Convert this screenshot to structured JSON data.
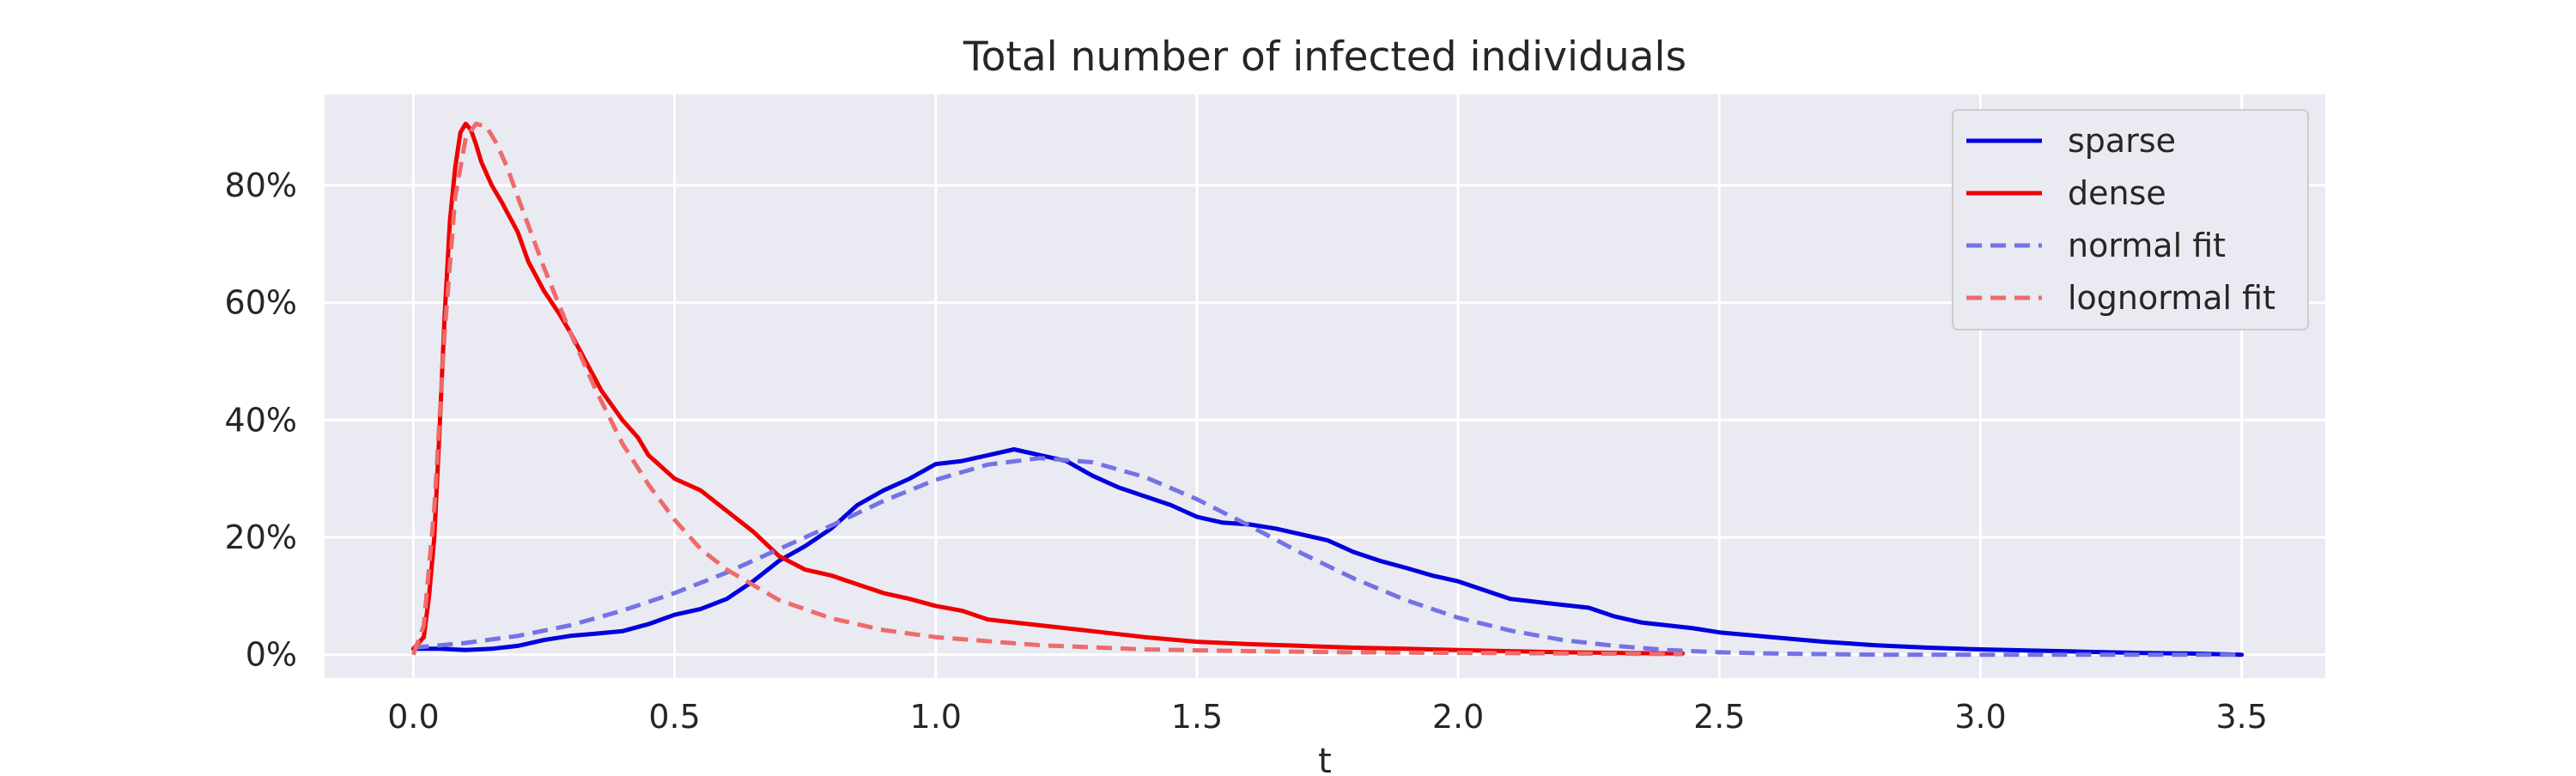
{
  "chart_data": {
    "type": "line",
    "title": "Total number of infected individuals",
    "xlabel": "t",
    "ylabel": "",
    "xlim": [
      -0.17,
      3.66
    ],
    "ylim": [
      -0.04,
      0.955
    ],
    "xticks": [
      0.0,
      0.5,
      1.0,
      1.5,
      2.0,
      2.5,
      3.0,
      3.5
    ],
    "xtick_labels": [
      "0.0",
      "0.5",
      "1.0",
      "1.5",
      "2.0",
      "2.5",
      "3.0",
      "3.5"
    ],
    "yticks": [
      0.0,
      0.2,
      0.4,
      0.6,
      0.8
    ],
    "ytick_labels": [
      "0%",
      "20%",
      "40%",
      "60%",
      "80%"
    ],
    "grid": true,
    "legend_position": "top-right",
    "series": [
      {
        "name": "sparse",
        "color": "#0000dd",
        "style": "solid",
        "x": [
          0.0,
          0.05,
          0.1,
          0.15,
          0.2,
          0.25,
          0.3,
          0.35,
          0.4,
          0.45,
          0.5,
          0.55,
          0.6,
          0.65,
          0.7,
          0.75,
          0.8,
          0.85,
          0.9,
          0.95,
          1.0,
          1.05,
          1.1,
          1.15,
          1.2,
          1.25,
          1.3,
          1.35,
          1.4,
          1.45,
          1.5,
          1.55,
          1.6,
          1.65,
          1.7,
          1.75,
          1.8,
          1.85,
          1.9,
          1.95,
          2.0,
          2.05,
          2.1,
          2.15,
          2.2,
          2.25,
          2.3,
          2.35,
          2.4,
          2.45,
          2.5,
          2.6,
          2.7,
          2.8,
          2.9,
          3.0,
          3.1,
          3.2,
          3.3,
          3.4,
          3.5
        ],
        "y": [
          0.01,
          0.01,
          0.008,
          0.01,
          0.015,
          0.025,
          0.032,
          0.036,
          0.04,
          0.052,
          0.068,
          0.078,
          0.095,
          0.125,
          0.16,
          0.185,
          0.215,
          0.255,
          0.28,
          0.3,
          0.325,
          0.33,
          0.34,
          0.35,
          0.34,
          0.33,
          0.305,
          0.285,
          0.27,
          0.255,
          0.235,
          0.225,
          0.222,
          0.215,
          0.205,
          0.195,
          0.175,
          0.16,
          0.148,
          0.135,
          0.125,
          0.11,
          0.095,
          0.09,
          0.085,
          0.08,
          0.065,
          0.055,
          0.05,
          0.045,
          0.038,
          0.03,
          0.022,
          0.016,
          0.012,
          0.009,
          0.007,
          0.005,
          0.003,
          0.002,
          0.0
        ]
      },
      {
        "name": "dense",
        "color": "#ee0000",
        "style": "solid",
        "x": [
          0.0,
          0.02,
          0.03,
          0.04,
          0.05,
          0.06,
          0.07,
          0.08,
          0.09,
          0.1,
          0.11,
          0.12,
          0.13,
          0.15,
          0.17,
          0.2,
          0.22,
          0.25,
          0.28,
          0.3,
          0.33,
          0.36,
          0.4,
          0.43,
          0.45,
          0.5,
          0.55,
          0.6,
          0.65,
          0.7,
          0.75,
          0.8,
          0.85,
          0.9,
          0.95,
          1.0,
          1.05,
          1.1,
          1.2,
          1.3,
          1.4,
          1.5,
          1.6,
          1.7,
          1.8,
          1.9,
          2.0,
          2.1,
          2.2,
          2.3,
          2.43
        ],
        "y": [
          0.01,
          0.03,
          0.1,
          0.2,
          0.38,
          0.58,
          0.74,
          0.83,
          0.89,
          0.905,
          0.895,
          0.87,
          0.84,
          0.8,
          0.77,
          0.72,
          0.67,
          0.62,
          0.58,
          0.55,
          0.5,
          0.45,
          0.4,
          0.37,
          0.34,
          0.3,
          0.28,
          0.245,
          0.21,
          0.168,
          0.145,
          0.135,
          0.12,
          0.105,
          0.095,
          0.083,
          0.075,
          0.06,
          0.05,
          0.04,
          0.03,
          0.022,
          0.018,
          0.015,
          0.012,
          0.01,
          0.008,
          0.006,
          0.004,
          0.003,
          0.002
        ]
      },
      {
        "name": "normal fit",
        "color": "#7373e6",
        "style": "dashed",
        "x": [
          0.0,
          0.1,
          0.2,
          0.3,
          0.4,
          0.5,
          0.6,
          0.7,
          0.8,
          0.9,
          1.0,
          1.1,
          1.2,
          1.3,
          1.4,
          1.5,
          1.6,
          1.7,
          1.8,
          1.9,
          2.0,
          2.1,
          2.2,
          2.3,
          2.4,
          2.5,
          2.6,
          2.8,
          3.0,
          3.2,
          3.5
        ],
        "y": [
          0.012,
          0.02,
          0.032,
          0.05,
          0.075,
          0.105,
          0.14,
          0.18,
          0.22,
          0.262,
          0.298,
          0.324,
          0.335,
          0.328,
          0.303,
          0.265,
          0.22,
          0.173,
          0.13,
          0.093,
          0.063,
          0.041,
          0.025,
          0.015,
          0.008,
          0.004,
          0.002,
          0.0,
          0.0,
          0.0,
          0.0
        ]
      },
      {
        "name": "lognormal fit",
        "color": "#ee6b6b",
        "style": "dashed",
        "x": [
          0.0,
          0.02,
          0.04,
          0.06,
          0.08,
          0.1,
          0.12,
          0.14,
          0.16,
          0.18,
          0.2,
          0.25,
          0.3,
          0.35,
          0.4,
          0.45,
          0.5,
          0.55,
          0.6,
          0.7,
          0.8,
          0.9,
          1.0,
          1.2,
          1.4,
          1.6,
          1.8,
          2.0,
          2.2,
          2.43
        ],
        "y": [
          0.0,
          0.05,
          0.25,
          0.55,
          0.78,
          0.88,
          0.905,
          0.9,
          0.87,
          0.83,
          0.78,
          0.66,
          0.55,
          0.45,
          0.36,
          0.29,
          0.23,
          0.18,
          0.145,
          0.093,
          0.062,
          0.042,
          0.03,
          0.016,
          0.009,
          0.006,
          0.004,
          0.003,
          0.002,
          0.001
        ]
      }
    ]
  }
}
